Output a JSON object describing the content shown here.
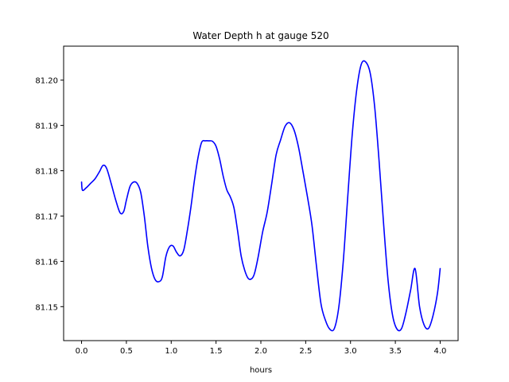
{
  "chart_data": {
    "type": "line",
    "title": "Water Depth h at gauge 520",
    "xlabel": "hours",
    "ylabel": "",
    "xlim": [
      -0.2,
      4.2
    ],
    "ylim": [
      81.1425,
      81.2075
    ],
    "xticks": [
      0.0,
      0.5,
      1.0,
      1.5,
      2.0,
      2.5,
      3.0,
      3.5,
      4.0
    ],
    "xtick_labels": [
      "0.0",
      "0.5",
      "1.0",
      "1.5",
      "2.0",
      "2.5",
      "3.0",
      "3.5",
      "4.0"
    ],
    "yticks": [
      81.15,
      81.16,
      81.17,
      81.18,
      81.19,
      81.2
    ],
    "ytick_labels": [
      "81.15",
      "81.16",
      "81.17",
      "81.18",
      "81.19",
      "81.20"
    ],
    "grid": false,
    "series": [
      {
        "color": "#0000ff",
        "x": [
          0.0,
          0.01,
          0.05,
          0.1,
          0.15,
          0.2,
          0.24,
          0.28,
          0.33,
          0.38,
          0.43,
          0.47,
          0.5,
          0.54,
          0.58,
          0.62,
          0.66,
          0.7,
          0.74,
          0.78,
          0.82,
          0.86,
          0.9,
          0.94,
          0.98,
          1.02,
          1.06,
          1.1,
          1.14,
          1.18,
          1.22,
          1.26,
          1.3,
          1.34,
          1.38,
          1.42,
          1.46,
          1.5,
          1.54,
          1.58,
          1.62,
          1.66,
          1.7,
          1.74,
          1.78,
          1.82,
          1.86,
          1.9,
          1.93,
          1.97,
          2.02,
          2.07,
          2.12,
          2.17,
          2.22,
          2.27,
          2.32,
          2.37,
          2.42,
          2.47,
          2.52,
          2.57,
          2.62,
          2.67,
          2.72,
          2.77,
          2.82,
          2.87,
          2.92,
          2.97,
          3.02,
          3.07,
          3.12,
          3.17,
          3.22,
          3.27,
          3.32,
          3.37,
          3.42,
          3.47,
          3.52,
          3.57,
          3.62,
          3.67,
          3.72,
          3.77,
          3.82,
          3.87,
          3.92,
          3.97,
          4.0
        ],
        "y": [
          81.1775,
          81.1757,
          81.1762,
          81.1772,
          81.1782,
          81.1798,
          81.1812,
          81.1805,
          81.1772,
          81.1736,
          81.1707,
          81.171,
          81.1735,
          81.1765,
          81.1775,
          81.1772,
          81.1752,
          81.17,
          81.1632,
          81.1585,
          81.156,
          81.1555,
          81.1565,
          81.161,
          81.1632,
          81.1634,
          81.162,
          81.1612,
          81.1625,
          81.1668,
          81.172,
          81.178,
          81.183,
          81.1863,
          81.1866,
          81.1866,
          81.1865,
          81.1854,
          81.1826,
          81.1788,
          81.1758,
          81.1742,
          81.1718,
          81.1668,
          81.1612,
          81.158,
          81.1562,
          81.1562,
          81.1574,
          81.161,
          81.1665,
          81.1708,
          81.177,
          81.1835,
          81.1868,
          81.1898,
          81.1906,
          81.189,
          81.1852,
          81.1798,
          81.1742,
          81.168,
          81.159,
          81.1507,
          81.147,
          81.145,
          81.1452,
          81.15,
          81.1602,
          81.1745,
          81.1882,
          81.198,
          81.2035,
          81.204,
          81.2015,
          81.194,
          81.1818,
          81.168,
          81.1556,
          81.148,
          81.145,
          81.1452,
          81.1488,
          81.1536,
          81.1584,
          81.15,
          81.146,
          81.1452,
          81.148,
          81.153,
          81.1584
        ]
      }
    ]
  }
}
